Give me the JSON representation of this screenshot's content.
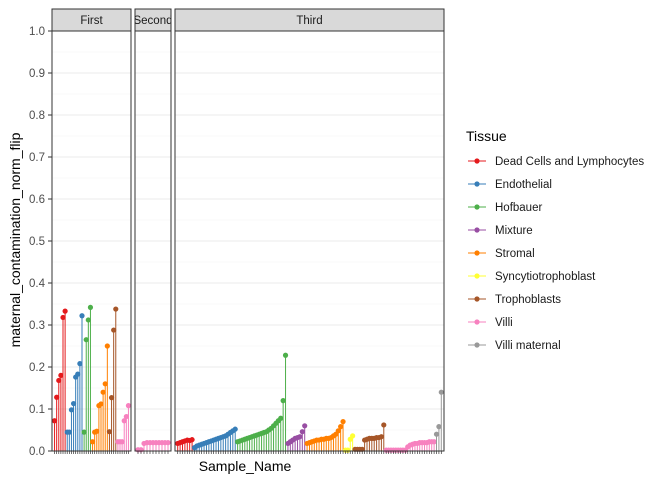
{
  "chart_data": {
    "type": "lollipop",
    "ylabel": "maternal_contamination_norm_flip",
    "xlabel": "Sample_Name",
    "ylim": [
      0,
      1
    ],
    "yticks": [
      "0.0",
      "0.1",
      "0.2",
      "0.3",
      "0.4",
      "0.5",
      "0.6",
      "0.7",
      "0.8",
      "0.9",
      "1.0"
    ],
    "grid": true,
    "facets": [
      {
        "label": "First",
        "groups": [
          {
            "tissue": "Dead Cells and Lymphocytes",
            "values": [
              0.072,
              0.128,
              0.168,
              0.18,
              0.318,
              0.333
            ]
          },
          {
            "tissue": "Endothelial",
            "values": [
              0.045,
              0.045,
              0.098,
              0.113,
              0.176,
              0.183,
              0.208,
              0.322
            ]
          },
          {
            "tissue": "Hofbauer",
            "values": [
              0.045,
              0.265,
              0.312,
              0.342
            ]
          },
          {
            "tissue": "Stromal",
            "values": [
              0.022,
              0.045,
              0.047,
              0.108,
              0.112,
              0.14,
              0.16,
              0.25
            ]
          },
          {
            "tissue": "Trophoblasts",
            "values": [
              0.046,
              0.127,
              0.288,
              0.338
            ]
          },
          {
            "tissue": "Villi",
            "values": [
              0.022,
              0.022,
              0.022,
              0.072,
              0.082,
              0.108
            ]
          }
        ]
      },
      {
        "label": "Second",
        "groups": [
          {
            "tissue": "Villi",
            "values": [
              0.003,
              0.003,
              0.018,
              0.02,
              0.02,
              0.02,
              0.02,
              0.02,
              0.02,
              0.02,
              0.02
            ]
          }
        ]
      },
      {
        "label": "Third",
        "groups": [
          {
            "tissue": "Dead Cells and Lymphocytes",
            "values": [
              0.018,
              0.02,
              0.022,
              0.024,
              0.026,
              0.025,
              0.027
            ]
          },
          {
            "tissue": "Endothelial",
            "values": [
              0.008,
              0.012,
              0.014,
              0.016,
              0.018,
              0.02,
              0.022,
              0.024,
              0.026,
              0.028,
              0.03,
              0.032,
              0.034,
              0.036,
              0.04,
              0.044,
              0.048,
              0.052
            ]
          },
          {
            "tissue": "Hofbauer",
            "values": [
              0.022,
              0.024,
              0.026,
              0.028,
              0.03,
              0.032,
              0.034,
              0.036,
              0.038,
              0.04,
              0.042,
              0.044,
              0.046,
              0.05,
              0.054,
              0.06,
              0.066,
              0.072,
              0.078,
              0.12,
              0.228
            ]
          },
          {
            "tissue": "Mixture",
            "values": [
              0.018,
              0.022,
              0.026,
              0.03,
              0.032,
              0.034,
              0.046,
              0.06
            ]
          },
          {
            "tissue": "Stromal",
            "values": [
              0.018,
              0.02,
              0.022,
              0.024,
              0.026,
              0.026,
              0.028,
              0.028,
              0.03,
              0.03,
              0.032,
              0.036,
              0.04,
              0.048,
              0.058,
              0.07
            ]
          },
          {
            "tissue": "Syncytiotrophoblast",
            "values": [
              0.002,
              0.002,
              0.028,
              0.036
            ]
          },
          {
            "tissue": "Trophoblasts",
            "values": [
              0.004,
              0.004,
              0.004,
              0.004,
              0.026,
              0.028,
              0.03,
              0.03,
              0.03,
              0.032,
              0.032,
              0.034,
              0.062
            ]
          },
          {
            "tissue": "Villi",
            "values": [
              0.002,
              0.002,
              0.002,
              0.002,
              0.002,
              0.002,
              0.002,
              0.002,
              0.002,
              0.01,
              0.014,
              0.016,
              0.018,
              0.018,
              0.02,
              0.02,
              0.02,
              0.02,
              0.022,
              0.022,
              0.022
            ]
          },
          {
            "tissue": "Villi maternal",
            "values": [
              0.04,
              0.058,
              0.14
            ]
          }
        ]
      }
    ],
    "legend": {
      "title": "Tissue",
      "position": "right",
      "entries": [
        {
          "name": "Dead Cells and Lymphocytes",
          "color": "#e41a1c"
        },
        {
          "name": "Endothelial",
          "color": "#377eb8"
        },
        {
          "name": "Hofbauer",
          "color": "#4daf4a"
        },
        {
          "name": "Mixture",
          "color": "#984ea3"
        },
        {
          "name": "Stromal",
          "color": "#ff7f00"
        },
        {
          "name": "Syncytiotrophoblast",
          "color": "#ffff33"
        },
        {
          "name": "Trophoblasts",
          "color": "#a65628"
        },
        {
          "name": "Villi",
          "color": "#f781bf"
        },
        {
          "name": "Villi maternal",
          "color": "#999999"
        }
      ]
    }
  }
}
